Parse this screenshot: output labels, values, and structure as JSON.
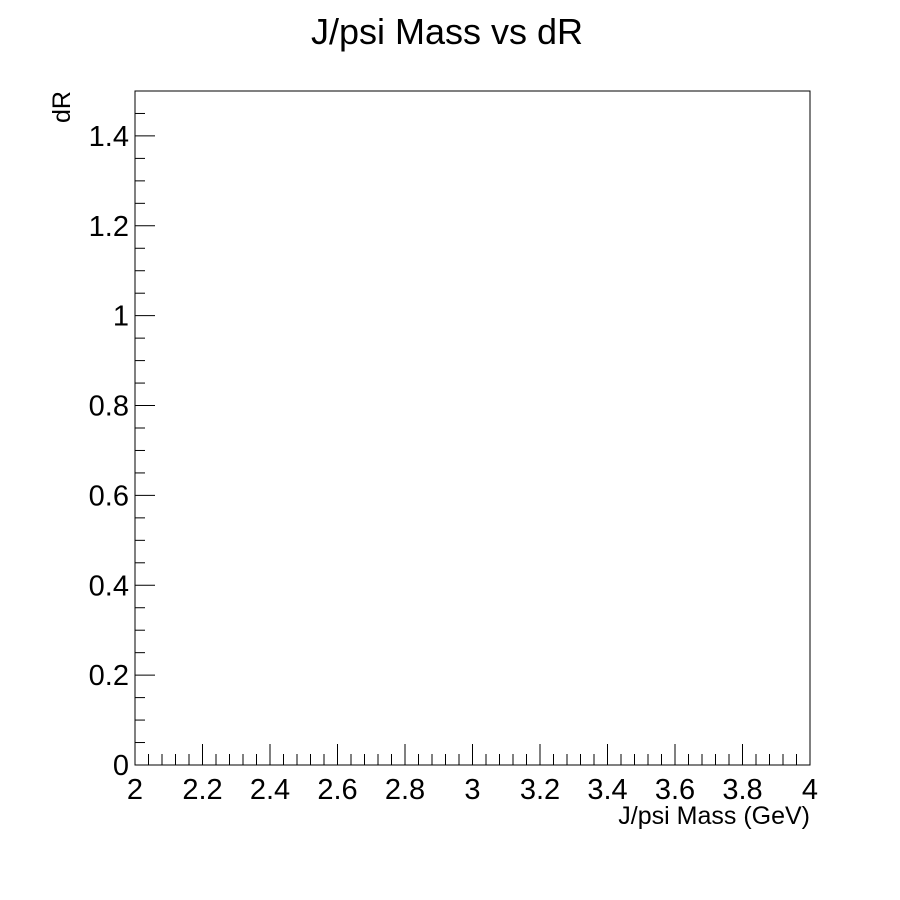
{
  "chart_data": {
    "type": "scatter",
    "title": "J/psi Mass vs dR",
    "xlabel": "J/psi Mass (GeV)",
    "ylabel": "dR",
    "xlim": [
      2,
      4
    ],
    "ylim": [
      0,
      1.5
    ],
    "x_ticks": [
      "2",
      "2.2",
      "2.4",
      "2.6",
      "2.8",
      "3",
      "3.2",
      "3.4",
      "3.6",
      "3.8",
      "4"
    ],
    "y_ticks": [
      "0",
      "0.2",
      "0.4",
      "0.6",
      "0.8",
      "1",
      "1.2",
      "1.4"
    ],
    "grid": false,
    "series": [
      {
        "x": [],
        "y": []
      }
    ]
  }
}
